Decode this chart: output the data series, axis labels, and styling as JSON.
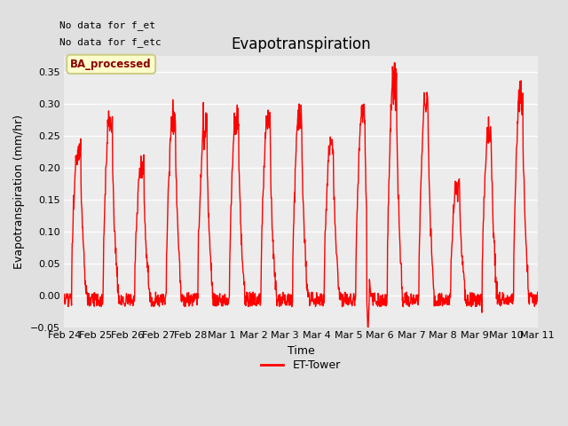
{
  "title": "Evapotranspiration",
  "xlabel": "Time",
  "ylabel": "Evapotranspiration (mm/hr)",
  "ylim": [
    -0.05,
    0.375
  ],
  "yticks": [
    -0.05,
    0.0,
    0.05,
    0.1,
    0.15,
    0.2,
    0.25,
    0.3,
    0.35
  ],
  "line_color": "red",
  "line_width": 1.0,
  "legend_label": "ET-Tower",
  "legend_box_label": "BA_processed",
  "top_left_text_line1": "No data for f_et",
  "top_left_text_line2": "No data for f_etc",
  "background_color": "#e0e0e0",
  "plot_bg_color": "#ececec",
  "x_tick_labels": [
    "Feb 24",
    "Feb 25",
    "Feb 26",
    "Feb 27",
    "Feb 28",
    "Mar 1",
    "Mar 2",
    "Mar 3",
    "Mar 4",
    "Mar 5",
    "Mar 6",
    "Mar 7",
    "Mar 8",
    "Mar 9",
    "Mar 10",
    "Mar 11"
  ],
  "title_fontsize": 12,
  "axis_label_fontsize": 9,
  "tick_fontsize": 8,
  "day_peaks": [
    0.235,
    0.275,
    0.205,
    0.278,
    0.262,
    0.275,
    0.275,
    0.285,
    0.24,
    0.288,
    0.35,
    0.308,
    0.177,
    0.256,
    0.316
  ],
  "figwidth": 6.4,
  "figheight": 4.8,
  "dpi": 100
}
